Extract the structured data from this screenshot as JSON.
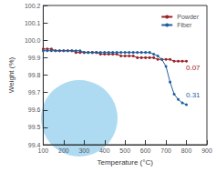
{
  "chart_data": {
    "type": "line",
    "x_label": "Temperature (°C)",
    "y_label": "Weight (%)",
    "xlim": [
      100,
      900
    ],
    "xticks": [
      100,
      200,
      300,
      400,
      500,
      600,
      700,
      800,
      900
    ],
    "ylim": [
      99.4,
      100.2
    ],
    "yticks": [
      99.4,
      99.5,
      99.6,
      99.7,
      99.8,
      99.9,
      {
        "value": 100,
        "label": "100.0"
      },
      100.1,
      100.2
    ],
    "grid": false,
    "legend": "upper right",
    "marker": "circle",
    "x": [
      100,
      120,
      140,
      160,
      180,
      200,
      220,
      240,
      260,
      280,
      300,
      320,
      340,
      360,
      380,
      400,
      420,
      440,
      460,
      480,
      500,
      520,
      540,
      560,
      580,
      600,
      620,
      640,
      660,
      680,
      700,
      720,
      740,
      760,
      780,
      800
    ],
    "series": [
      {
        "name": "Powder",
        "color": "#9b2226",
        "values": [
          99.95,
          99.95,
          99.95,
          99.94,
          99.94,
          99.94,
          99.94,
          99.94,
          99.93,
          99.93,
          99.93,
          99.93,
          99.93,
          99.93,
          99.92,
          99.92,
          99.92,
          99.92,
          99.92,
          99.91,
          99.91,
          99.91,
          99.91,
          99.9,
          99.9,
          99.9,
          99.9,
          99.9,
          99.89,
          99.89,
          99.89,
          99.89,
          99.88,
          99.88,
          99.88,
          99.88
        ]
      },
      {
        "name": "Fiber",
        "color": "#1f5f9e",
        "values": [
          99.94,
          99.94,
          99.94,
          99.94,
          99.94,
          99.94,
          99.94,
          99.94,
          99.94,
          99.94,
          99.93,
          99.93,
          99.93,
          99.93,
          99.93,
          99.93,
          99.93,
          99.93,
          99.93,
          99.93,
          99.93,
          99.93,
          99.93,
          99.93,
          99.93,
          99.93,
          99.93,
          99.92,
          99.91,
          99.89,
          99.85,
          99.76,
          99.69,
          99.66,
          99.64,
          99.63
        ]
      }
    ],
    "annotations": [
      {
        "text": "0.07",
        "color": "#9b2226"
      },
      {
        "text": "0.31",
        "color": "#1f5f9e"
      }
    ]
  }
}
